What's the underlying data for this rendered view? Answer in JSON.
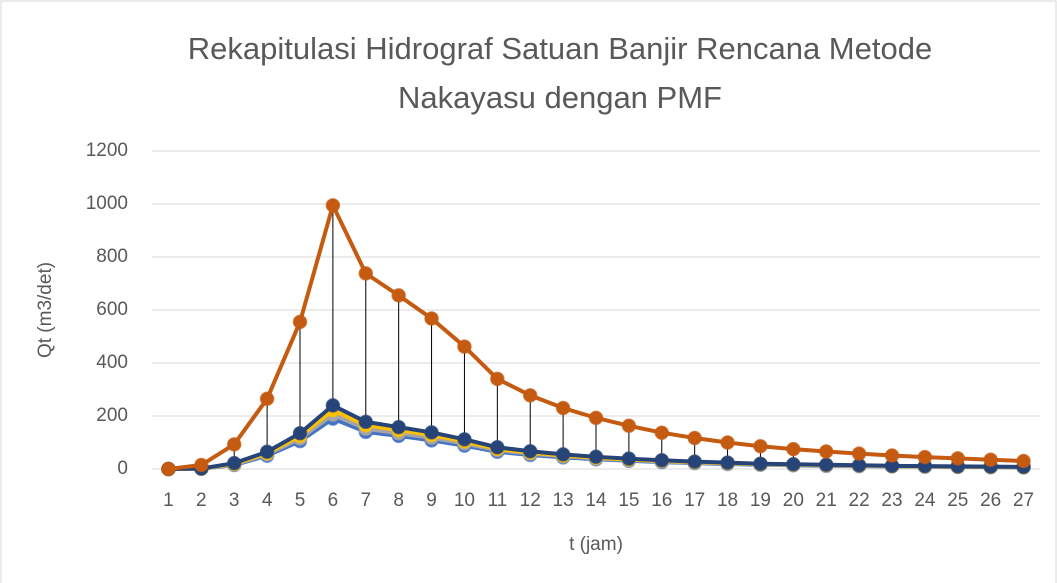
{
  "chart_data": {
    "type": "line",
    "title": "Rekapitulasi Hidrograf Satuan Banjir Rencana Metode Nakayasu dengan PMF",
    "x_label": "t (jam)",
    "y_label": "Qt (m3/det)",
    "categories": [
      "1",
      "2",
      "3",
      "4",
      "5",
      "6",
      "7",
      "8",
      "9",
      "10",
      "11",
      "12",
      "13",
      "14",
      "15",
      "16",
      "17",
      "18",
      "19",
      "20",
      "21",
      "22",
      "23",
      "24",
      "25",
      "26",
      "27"
    ],
    "series": [
      {
        "color": "#4472c4",
        "values": [
          0,
          1,
          15,
          50,
          105,
          190,
          140,
          125,
          108,
          88,
          65,
          53,
          44,
          37,
          31,
          26,
          22,
          19,
          16,
          14,
          12,
          11,
          10,
          9,
          8,
          7,
          6
        ]
      },
      {
        "color": "#a5a5a5",
        "values": [
          0,
          1,
          17,
          55,
          115,
          205,
          152,
          135,
          118,
          96,
          71,
          58,
          48,
          40,
          34,
          28,
          24,
          21,
          17,
          15,
          13,
          12,
          11,
          10,
          9,
          8,
          7
        ]
      },
      {
        "color": "#ffc000",
        "values": [
          0,
          2,
          19,
          60,
          125,
          222,
          165,
          147,
          128,
          104,
          76,
          62,
          51,
          43,
          36,
          31,
          26,
          22,
          19,
          17,
          15,
          13,
          11,
          10,
          9,
          8,
          7
        ]
      },
      {
        "color": "#264478",
        "values": [
          0,
          2,
          22,
          65,
          135,
          240,
          178,
          158,
          138,
          112,
          82,
          67,
          55,
          46,
          39,
          33,
          28,
          24,
          20,
          18,
          16,
          14,
          12,
          11,
          10,
          9,
          8
        ]
      },
      {
        "color": "#c55a11",
        "values": [
          0,
          15,
          93,
          265,
          555,
          995,
          738,
          655,
          568,
          462,
          340,
          278,
          230,
          193,
          163,
          137,
          117,
          100,
          86,
          75,
          66,
          58,
          51,
          45,
          40,
          35,
          30
        ]
      }
    ],
    "ylim": [
      0,
      1200
    ],
    "yticks": [
      0,
      200,
      400,
      600,
      800,
      1000,
      1200
    ],
    "grid": true,
    "drop_lines": true
  }
}
